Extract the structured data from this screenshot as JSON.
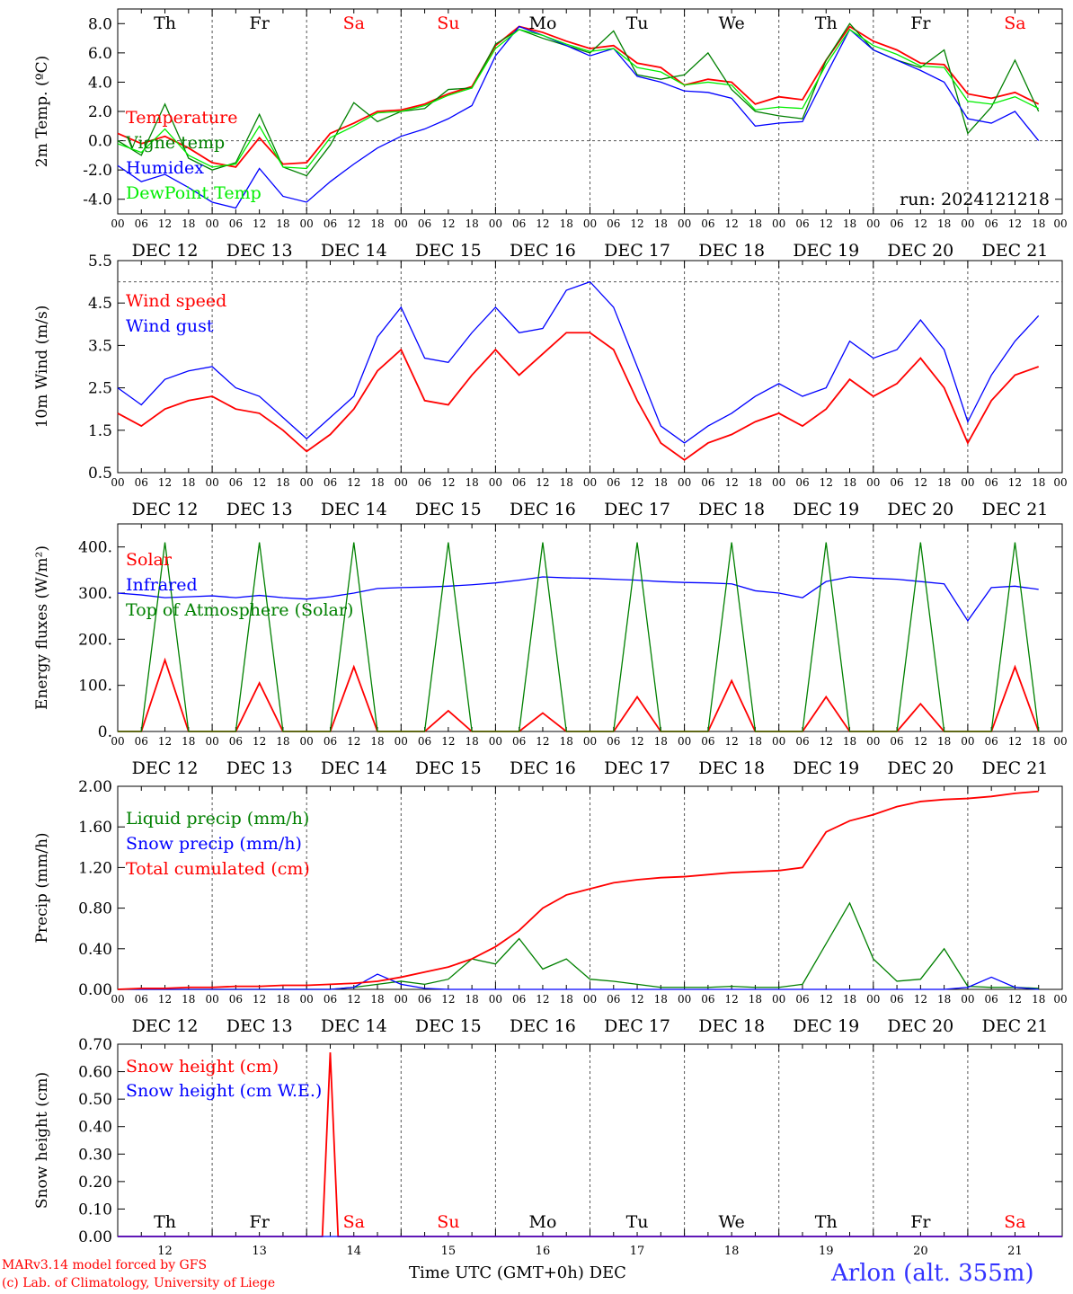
{
  "footer": {
    "credit_line1": "MARv3.14 model forced by GFS",
    "credit_line2": "(c) Lab. of Climatology, University of Liege",
    "xaxis_title": "Time UTC (GMT+0h) DEC",
    "station": "Arlon (alt. 355m)"
  },
  "colors": {
    "red": "#ff0000",
    "green": "#008000",
    "blue": "#0000ff",
    "lightgreen": "#00ee00",
    "weekend": "#ff0000",
    "weekday": "#000000",
    "credit": "#ff0000",
    "station": "#3333ff"
  },
  "run_label": "run: 2024121218",
  "days": {
    "weekdays": [
      "Th",
      "Fr",
      "Sa",
      "Su",
      "Mo",
      "Tu",
      "We",
      "Th",
      "Fr",
      "Sa"
    ],
    "weekend": [
      false,
      false,
      true,
      true,
      false,
      false,
      false,
      false,
      false,
      true
    ],
    "date_labels": [
      "DEC 12",
      "DEC 13",
      "DEC 14",
      "DEC 15",
      "DEC 16",
      "DEC 17",
      "DEC 18",
      "DEC 19",
      "DEC 20",
      "DEC 21"
    ],
    "day_numbers": [
      "12",
      "13",
      "14",
      "15",
      "16",
      "17",
      "18",
      "19",
      "20",
      "21"
    ],
    "hour_ticks": [
      "00",
      "06",
      "12",
      "18"
    ],
    "final_tick": "00"
  },
  "chart_data": [
    {
      "id": "temp",
      "type": "line",
      "ylabel": "2m Temp. (ºC)",
      "ylim": [
        -5.0,
        9.0
      ],
      "yticks": [
        "-4.0",
        "-2.0",
        "0.0",
        "2.0",
        "4.0",
        "6.0",
        "8.0"
      ],
      "ref_line": 0.0,
      "x_hours": [
        0,
        6,
        12,
        18,
        24,
        30,
        36,
        42,
        48,
        54,
        60,
        66,
        72,
        78,
        84,
        90,
        96,
        102,
        108,
        114,
        120,
        126,
        132,
        138,
        144,
        150,
        156,
        162,
        168,
        174,
        180,
        186,
        192,
        198,
        204,
        210,
        216,
        222,
        228,
        234
      ],
      "series": [
        {
          "name": "Temperature",
          "color": "red",
          "values": [
            0.5,
            -0.2,
            0.3,
            -0.5,
            -1.5,
            -1.8,
            0.2,
            -1.6,
            -1.5,
            0.5,
            1.2,
            2.0,
            2.1,
            2.5,
            3.2,
            3.7,
            6.5,
            7.8,
            7.4,
            6.8,
            6.3,
            6.5,
            5.3,
            5.0,
            3.8,
            4.2,
            4.0,
            2.5,
            3.0,
            2.8,
            5.5,
            7.8,
            6.8,
            6.2,
            5.3,
            5.2,
            3.2,
            2.9,
            3.3,
            2.5
          ]
        },
        {
          "name": "Vigne temp",
          "color": "green",
          "values": [
            0.0,
            -1.0,
            2.5,
            -1.2,
            -2.0,
            -1.5,
            1.8,
            -1.8,
            -2.4,
            -0.3,
            2.6,
            1.3,
            2.0,
            2.2,
            3.5,
            3.6,
            6.6,
            7.6,
            7.0,
            6.5,
            6.0,
            7.5,
            4.5,
            4.2,
            4.5,
            6.0,
            3.5,
            2.0,
            1.7,
            1.5,
            5.5,
            8.0,
            6.2,
            5.5,
            5.0,
            6.2,
            0.5,
            2.3,
            5.5,
            2.0
          ]
        },
        {
          "name": "Humidex",
          "color": "blue",
          "values": [
            -1.7,
            -2.8,
            -2.3,
            -3.2,
            -4.2,
            -4.6,
            -1.9,
            -3.8,
            -4.2,
            -2.8,
            -1.6,
            -0.5,
            0.3,
            0.8,
            1.5,
            2.4,
            5.8,
            7.8,
            7.2,
            6.5,
            5.8,
            6.3,
            4.4,
            4.0,
            3.4,
            3.3,
            2.9,
            1.0,
            1.2,
            1.3,
            4.5,
            7.6,
            6.2,
            5.5,
            4.8,
            4.0,
            1.5,
            1.2,
            2.0,
            0.0
          ]
        },
        {
          "name": "DewPoint Temp",
          "color": "lightgreen",
          "values": [
            -0.2,
            -0.8,
            0.8,
            -1.0,
            -1.8,
            -1.6,
            1.0,
            -1.8,
            -1.9,
            0.2,
            1.0,
            1.9,
            2.0,
            2.4,
            3.1,
            3.6,
            6.3,
            7.6,
            7.2,
            6.6,
            6.1,
            6.3,
            5.0,
            4.7,
            3.8,
            4.0,
            3.8,
            2.1,
            2.3,
            2.2,
            5.2,
            7.6,
            6.5,
            5.9,
            5.1,
            5.0,
            2.7,
            2.5,
            3.0,
            2.2
          ]
        }
      ]
    },
    {
      "id": "wind",
      "type": "line",
      "ylabel": "10m Wind (m/s)",
      "ylim": [
        0.5,
        5.5
      ],
      "yticks": [
        "0.5",
        "1.5",
        "2.5",
        "3.5",
        "4.5",
        "5.5"
      ],
      "ref_line": 5.0,
      "x_hours": [
        0,
        6,
        12,
        18,
        24,
        30,
        36,
        42,
        48,
        54,
        60,
        66,
        72,
        78,
        84,
        90,
        96,
        102,
        108,
        114,
        120,
        126,
        132,
        138,
        144,
        150,
        156,
        162,
        168,
        174,
        180,
        186,
        192,
        198,
        204,
        210,
        216,
        222,
        228,
        234
      ],
      "series": [
        {
          "name": "Wind speed",
          "color": "red",
          "values": [
            1.9,
            1.6,
            2.0,
            2.2,
            2.3,
            2.0,
            1.9,
            1.5,
            1.0,
            1.4,
            2.0,
            2.9,
            3.4,
            2.2,
            2.1,
            2.8,
            3.4,
            2.8,
            3.3,
            3.8,
            3.8,
            3.4,
            2.2,
            1.2,
            0.8,
            1.2,
            1.4,
            1.7,
            1.9,
            1.6,
            2.0,
            2.7,
            2.3,
            2.6,
            3.2,
            2.5,
            1.2,
            2.2,
            2.8,
            3.0
          ]
        },
        {
          "name": "Wind gust",
          "color": "blue",
          "values": [
            2.5,
            2.1,
            2.7,
            2.9,
            3.0,
            2.5,
            2.3,
            1.8,
            1.3,
            1.8,
            2.3,
            3.7,
            4.4,
            3.2,
            3.1,
            3.8,
            4.4,
            3.8,
            3.9,
            4.8,
            5.0,
            4.4,
            3.0,
            1.6,
            1.2,
            1.6,
            1.9,
            2.3,
            2.6,
            2.3,
            2.5,
            3.6,
            3.2,
            3.4,
            4.1,
            3.4,
            1.7,
            2.8,
            3.6,
            4.2
          ]
        }
      ]
    },
    {
      "id": "energy",
      "type": "line",
      "ylabel": "Energy fluxes (W/m²)",
      "ylim": [
        0,
        450
      ],
      "yticks": [
        "0.",
        "100.",
        "200.",
        "300.",
        "400."
      ],
      "x_hours": [
        0,
        6,
        12,
        18,
        24,
        30,
        36,
        42,
        48,
        54,
        60,
        66,
        72,
        78,
        84,
        90,
        96,
        102,
        108,
        114,
        120,
        126,
        132,
        138,
        144,
        150,
        156,
        162,
        168,
        174,
        180,
        186,
        192,
        198,
        204,
        210,
        216,
        222,
        228,
        234
      ],
      "series": [
        {
          "name": "Solar",
          "color": "red",
          "values": [
            0,
            0,
            155,
            0,
            0,
            0,
            105,
            0,
            0,
            0,
            140,
            0,
            0,
            0,
            45,
            0,
            0,
            0,
            40,
            0,
            0,
            0,
            75,
            0,
            0,
            0,
            110,
            0,
            0,
            0,
            75,
            0,
            0,
            0,
            60,
            0,
            0,
            0,
            140,
            0
          ]
        },
        {
          "name": "Infrared",
          "color": "blue",
          "values": [
            300,
            296,
            290,
            292,
            294,
            290,
            295,
            290,
            287,
            292,
            300,
            310,
            312,
            313,
            315,
            318,
            322,
            328,
            335,
            333,
            332,
            330,
            328,
            325,
            323,
            322,
            320,
            305,
            300,
            290,
            325,
            335,
            332,
            330,
            325,
            320,
            240,
            312,
            315,
            308
          ]
        },
        {
          "name": "Top of Atmosphere (Solar)",
          "color": "green",
          "values": [
            0,
            0,
            410,
            0,
            0,
            0,
            410,
            0,
            0,
            0,
            410,
            0,
            0,
            0,
            410,
            0,
            0,
            0,
            410,
            0,
            0,
            0,
            410,
            0,
            0,
            0,
            410,
            0,
            0,
            0,
            410,
            0,
            0,
            0,
            410,
            0,
            0,
            0,
            410,
            0
          ]
        }
      ]
    },
    {
      "id": "precip",
      "type": "line",
      "ylabel": "Precip (mm/h)",
      "ylim": [
        0.0,
        2.0
      ],
      "yticks": [
        "0.00",
        "0.40",
        "0.80",
        "1.20",
        "1.60",
        "2.00"
      ],
      "x_hours": [
        0,
        6,
        12,
        18,
        24,
        30,
        36,
        42,
        48,
        54,
        60,
        66,
        72,
        78,
        84,
        90,
        96,
        102,
        108,
        114,
        120,
        126,
        132,
        138,
        144,
        150,
        156,
        162,
        168,
        174,
        180,
        186,
        192,
        198,
        204,
        210,
        216,
        222,
        228,
        234
      ],
      "series": [
        {
          "name": "Liquid precip (mm/h)",
          "color": "green",
          "values": [
            0,
            0,
            0,
            0,
            0,
            0,
            0,
            0,
            0,
            0,
            0.02,
            0.05,
            0.08,
            0.05,
            0.1,
            0.3,
            0.25,
            0.5,
            0.2,
            0.3,
            0.1,
            0.08,
            0.05,
            0.02,
            0.02,
            0.02,
            0.03,
            0.02,
            0.02,
            0.05,
            0.45,
            0.85,
            0.3,
            0.08,
            0.1,
            0.4,
            0.03,
            0.02,
            0.02,
            0.01
          ]
        },
        {
          "name": "Snow precip (mm/h)",
          "color": "blue",
          "values": [
            0,
            0,
            0,
            0,
            0,
            0,
            0,
            0,
            0,
            0,
            0.02,
            0.15,
            0.05,
            0.01,
            0,
            0,
            0,
            0,
            0,
            0,
            0,
            0,
            0,
            0,
            0,
            0,
            0,
            0,
            0,
            0,
            0,
            0,
            0,
            0,
            0,
            0,
            0.02,
            0.12,
            0.02,
            0
          ]
        },
        {
          "name": "Total cumulated (cm)",
          "color": "red",
          "values": [
            0,
            0.01,
            0.01,
            0.02,
            0.02,
            0.03,
            0.03,
            0.04,
            0.04,
            0.05,
            0.06,
            0.08,
            0.12,
            0.17,
            0.22,
            0.3,
            0.42,
            0.58,
            0.8,
            0.93,
            0.99,
            1.05,
            1.08,
            1.1,
            1.11,
            1.13,
            1.15,
            1.16,
            1.17,
            1.2,
            1.55,
            1.66,
            1.72,
            1.8,
            1.85,
            1.87,
            1.88,
            1.9,
            1.93,
            1.95
          ]
        }
      ]
    },
    {
      "id": "snow",
      "type": "line",
      "ylabel": "Snow height (cm)",
      "ylim": [
        0.0,
        0.7
      ],
      "yticks": [
        "0.00",
        "0.10",
        "0.20",
        "0.30",
        "0.40",
        "0.50",
        "0.60",
        "0.70"
      ],
      "x_hours": [
        0,
        48,
        52,
        54,
        56,
        60,
        240
      ],
      "series": [
        {
          "name": "Snow height (cm)",
          "color": "red",
          "values": [
            0,
            0,
            0,
            0.67,
            0,
            0,
            0
          ]
        },
        {
          "name": "Snow height (cm W.E.)",
          "color": "blue",
          "values": [
            0,
            0,
            0,
            0,
            0,
            0,
            0
          ]
        }
      ]
    }
  ]
}
